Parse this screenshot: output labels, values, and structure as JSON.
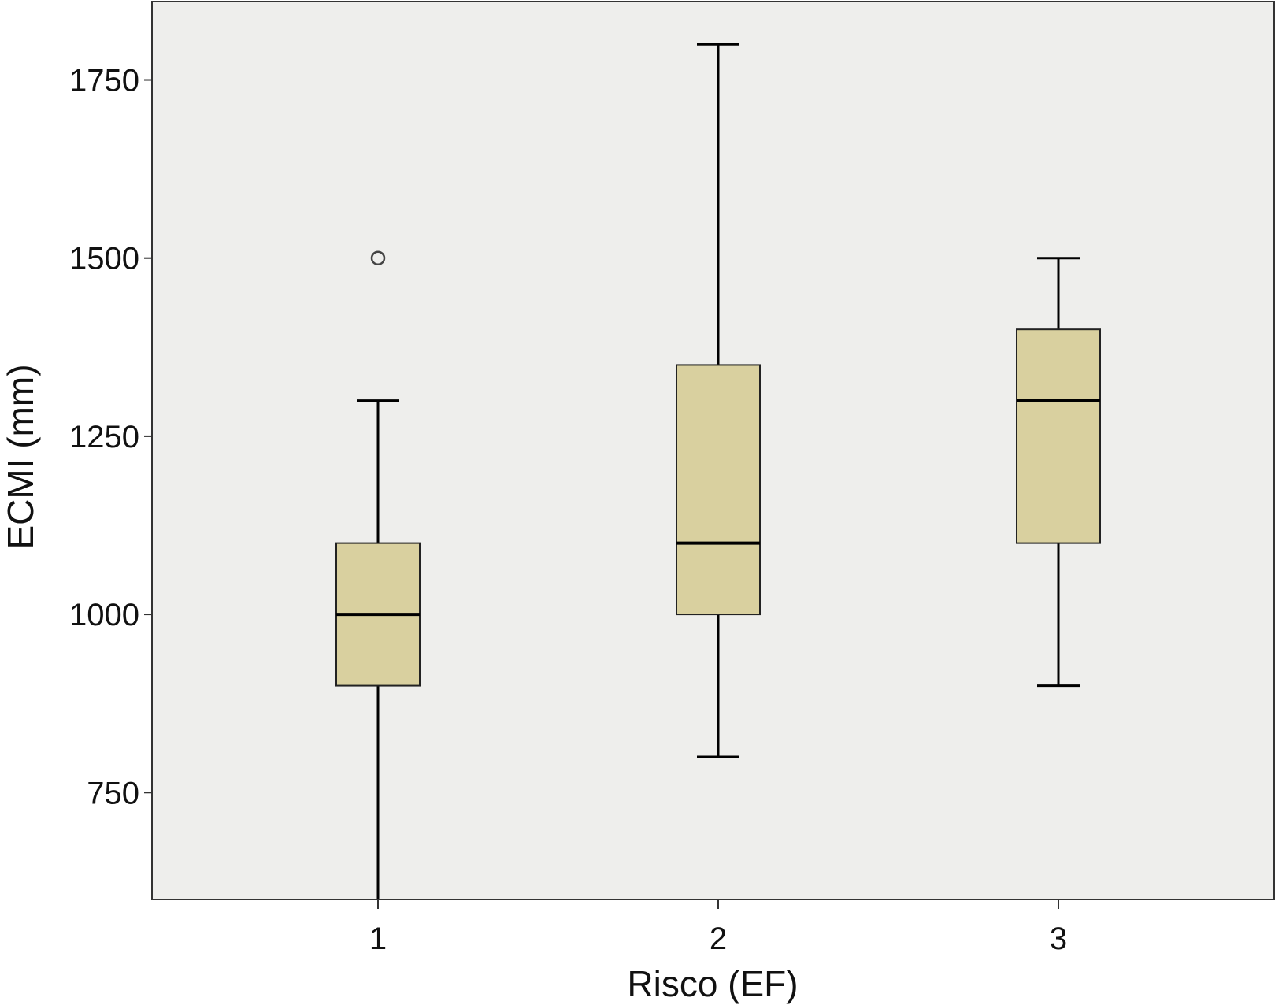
{
  "chart_data": {
    "type": "box",
    "title": "",
    "xlabel": "Risco (EF)",
    "ylabel": "ECMI (mm)",
    "categories": [
      "1",
      "2",
      "3"
    ],
    "ylim": [
      600,
      1860
    ],
    "yticks": [
      750,
      1000,
      1250,
      1500,
      1750
    ],
    "grid": false,
    "boxes": [
      {
        "category": "1",
        "whisker_low": 600,
        "q1": 900,
        "median": 1000,
        "q3": 1100,
        "whisker_high": 1300,
        "outliers": [
          1500
        ]
      },
      {
        "category": "2",
        "whisker_low": 800,
        "q1": 1000,
        "median": 1100,
        "q3": 1350,
        "whisker_high": 1800,
        "outliers": []
      },
      {
        "category": "3",
        "whisker_low": 900,
        "q1": 1100,
        "median": 1300,
        "q3": 1400,
        "whisker_high": 1500,
        "outliers": []
      }
    ],
    "colors": {
      "plot_background": "#eeeeec",
      "box_fill": "#d9d09f",
      "line": "#000000"
    }
  }
}
